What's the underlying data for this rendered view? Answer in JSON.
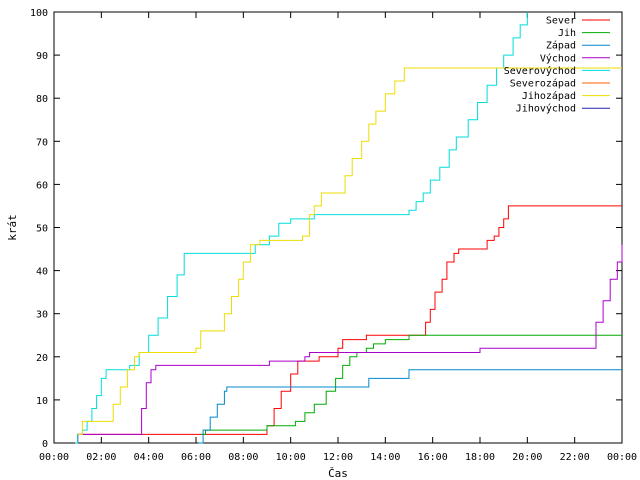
{
  "chart_data": {
    "type": "line",
    "title": "",
    "xlabel": "Čas",
    "ylabel": "krát",
    "xlim": [
      0,
      24
    ],
    "ylim": [
      0,
      100
    ],
    "x_ticks": [
      0,
      2,
      4,
      6,
      8,
      10,
      12,
      14,
      16,
      18,
      20,
      22,
      24
    ],
    "x_tick_labels": [
      "00:00",
      "02:00",
      "04:00",
      "06:00",
      "08:00",
      "10:00",
      "12:00",
      "14:00",
      "16:00",
      "18:00",
      "20:00",
      "22:00",
      "00:00"
    ],
    "y_ticks": [
      0,
      10,
      20,
      30,
      40,
      50,
      60,
      70,
      80,
      90,
      100
    ],
    "y_tick_labels": [
      "0",
      "10",
      "20",
      "30",
      "40",
      "50",
      "60",
      "70",
      "80",
      "90",
      "100"
    ],
    "grid": false,
    "legend_position": "top-right",
    "series": [
      {
        "name": "Sever",
        "color": "#ff0000",
        "x": [
          0.9,
          1.0,
          8.9,
          9.0,
          9.3,
          9.6,
          10.0,
          10.3,
          11.2,
          11.3,
          12.0,
          12.2,
          13.0,
          13.2,
          15.5,
          15.7,
          15.9,
          16.1,
          16.4,
          16.6,
          16.9,
          17.1,
          17.4,
          17.7,
          17.9,
          18.3,
          18.6,
          18.8,
          19.0,
          19.2,
          19.4,
          24.0
        ],
        "y": [
          0,
          2,
          2,
          4,
          8,
          12,
          16,
          19,
          20,
          20,
          22,
          24,
          24,
          25,
          25,
          28,
          31,
          35,
          38,
          42,
          44,
          45,
          45,
          45,
          45,
          47,
          48,
          50,
          52,
          55,
          55,
          55
        ]
      },
      {
        "name": "Jih",
        "color": "#00aa00",
        "x": [
          6.2,
          6.4,
          8.2,
          9.0,
          10.2,
          10.6,
          11.0,
          11.5,
          11.9,
          12.2,
          12.5,
          12.8,
          13.2,
          13.5,
          14.0,
          15.0,
          24.0
        ],
        "y": [
          2,
          3,
          3,
          4,
          5,
          7,
          9,
          12,
          15,
          18,
          20,
          21,
          22,
          23,
          24,
          25,
          25
        ]
      },
      {
        "name": "Západ",
        "color": "#0088cc",
        "x": [
          6.1,
          6.3,
          6.6,
          6.9,
          7.2,
          7.3,
          9.0,
          11.0,
          13.1,
          13.3,
          14.8,
          15.0,
          24.0
        ],
        "y": [
          0,
          3,
          6,
          9,
          12,
          13,
          13,
          13,
          13,
          15,
          15,
          17,
          17
        ]
      },
      {
        "name": "Východ",
        "color": "#aa00cc",
        "x": [
          0.9,
          1.0,
          3.5,
          3.7,
          3.9,
          4.1,
          4.3,
          8.9,
          9.1,
          10.6,
          10.8,
          12.0,
          14.0,
          16.0,
          18.0,
          22.6,
          22.9,
          23.2,
          23.5,
          23.8,
          24.0
        ],
        "y": [
          0,
          2,
          2,
          8,
          14,
          17,
          18,
          18,
          19,
          20,
          21,
          21,
          21,
          21,
          22,
          22,
          28,
          33,
          38,
          42,
          46
        ]
      },
      {
        "name": "Severovýchod",
        "color": "#00dddd",
        "x": [
          0.9,
          1.0,
          1.2,
          1.4,
          1.6,
          1.8,
          2.0,
          2.2,
          3.0,
          3.2,
          3.6,
          4.0,
          4.4,
          4.8,
          5.2,
          5.5,
          6.0,
          7.0,
          8.0,
          8.5,
          9.1,
          9.5,
          10.0,
          11.0,
          12.0,
          13.0,
          14.5,
          15.0,
          15.3,
          15.6,
          15.9,
          16.3,
          16.7,
          17.0,
          17.5,
          17.9,
          18.3,
          18.7,
          19.0,
          19.4,
          19.7,
          20.0
        ],
        "y": [
          0,
          2,
          3,
          5,
          8,
          11,
          15,
          17,
          17,
          18,
          21,
          25,
          29,
          34,
          39,
          44,
          44,
          44,
          44,
          46,
          48,
          51,
          52,
          53,
          53,
          53,
          53,
          54,
          56,
          58,
          61,
          64,
          68,
          71,
          75,
          79,
          83,
          87,
          90,
          94,
          97,
          100
        ]
      },
      {
        "name": "Severozápad",
        "color": "#ff6600",
        "x": [],
        "y": []
      },
      {
        "name": "Jihozápad",
        "color": "#eedd00",
        "x": [
          1.0,
          1.2,
          2.2,
          2.5,
          2.8,
          3.1,
          3.4,
          3.6,
          5.8,
          6.0,
          6.2,
          7.0,
          7.2,
          7.5,
          7.8,
          8.0,
          8.3,
          8.7,
          9.5,
          10.2,
          10.5,
          10.8,
          11.0,
          11.3,
          12.0,
          12.3,
          12.6,
          13.0,
          13.3,
          13.6,
          14.0,
          14.4,
          14.8,
          15.0,
          24.0
        ],
        "y": [
          2,
          5,
          5,
          9,
          13,
          17,
          20,
          21,
          21,
          22,
          26,
          26,
          30,
          34,
          38,
          42,
          46,
          47,
          47,
          47,
          48,
          53,
          55,
          58,
          58,
          62,
          66,
          70,
          74,
          77,
          81,
          84,
          87,
          87,
          87
        ]
      },
      {
        "name": "Jihovýchod",
        "color": "#2222aa",
        "x": [],
        "y": []
      }
    ]
  }
}
